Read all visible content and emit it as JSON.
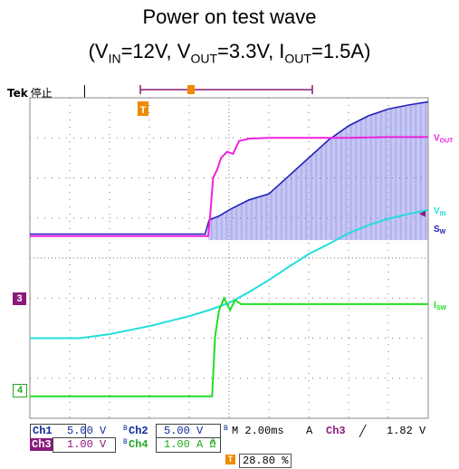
{
  "title": {
    "line1": "Power on test wave",
    "line2_prefix": "(V",
    "line2_vin_sub": "IN",
    "line2_vin_val": "=12V, V",
    "line2_vout_sub": "OUT",
    "line2_vout_val": "=3.3V, I",
    "line2_iout_sub": "OUT",
    "line2_iout_val": "=1.5A)"
  },
  "scope": {
    "brand": "Tek",
    "state": "停止",
    "trigger_marker": "T",
    "channel_markers": {
      "ch3": "3",
      "ch4": "4"
    }
  },
  "status_bar": {
    "ch1_label": "Ch1",
    "ch1_scale": "5.00 V",
    "ch2_label": "Ch2",
    "ch2_scale": "5.00 V",
    "timebase": "M 2.00ms",
    "acq_mode": "A",
    "trig_source": "Ch3",
    "trig_slope": "╱",
    "trig_level": "1.82 V",
    "ch3_label": "Ch3",
    "ch3_scale": "1.00 V",
    "ch4_label": "Ch4",
    "ch4_scale": "1.00 A Ω",
    "bw_mark": "B",
    "trigger_position": "28.80 %"
  },
  "colors": {
    "vout": "#ee22dd",
    "vin": "#22dddd",
    "sw": "#2222bb",
    "isw": "#22dd22",
    "trigger": "#ee8a00",
    "ch3": "#8a1a7a"
  },
  "chart_data": {
    "type": "line",
    "title": "Power on test wave",
    "subtitle": "(VIN=12V, VOUT=3.3V, IOUT=1.5A)",
    "xlabel": "",
    "ylabel": "",
    "x_divisions": 10,
    "y_divisions": 8,
    "grid": true,
    "x_unit": "ms",
    "x_range": [
      0,
      20
    ],
    "y_unit": "div",
    "y_range": [
      0,
      8
    ],
    "series": [
      {
        "name": "VOUT",
        "x": [
          0,
          8.95,
          9.05,
          9.2,
          9.4,
          9.6,
          9.9,
          10.2,
          10.5,
          11.0,
          12.0,
          14.0,
          16.0,
          18.0,
          20.0
        ],
        "y": [
          4.55,
          4.55,
          5.05,
          6.0,
          6.2,
          6.5,
          6.65,
          6.6,
          6.92,
          6.98,
          7.0,
          7.0,
          7.0,
          7.02,
          7.02
        ]
      },
      {
        "name": "VIN",
        "x": [
          0,
          2.5,
          4.0,
          6.0,
          8.0,
          9.0,
          10.0,
          11.0,
          12.0,
          13.0,
          14.0,
          15.0,
          16.0,
          17.0,
          18.0,
          19.0,
          20.0
        ],
        "y": [
          2.0,
          2.0,
          2.1,
          2.3,
          2.55,
          2.7,
          2.88,
          3.15,
          3.45,
          3.78,
          4.1,
          4.35,
          4.62,
          4.82,
          4.98,
          5.1,
          5.2
        ]
      },
      {
        "name": "SW",
        "x": [
          0,
          8.8,
          9.0,
          9.5,
          10.0,
          11.0,
          12.0,
          13.0,
          14.0,
          15.0,
          16.0,
          17.0,
          18.0,
          19.0,
          20.0
        ],
        "y": [
          4.6,
          4.6,
          4.95,
          5.05,
          5.2,
          5.45,
          5.6,
          6.05,
          6.5,
          6.95,
          7.3,
          7.55,
          7.72,
          7.82,
          7.9
        ]
      },
      {
        "name": "ISW",
        "x": [
          0,
          9.15,
          9.3,
          9.5,
          9.75,
          10.05,
          10.3,
          10.6,
          11.0,
          12.0,
          14.0,
          16.0,
          18.0,
          20.0
        ],
        "y": [
          0.55,
          0.55,
          2.05,
          2.7,
          3.0,
          2.7,
          2.95,
          2.85,
          2.85,
          2.85,
          2.85,
          2.85,
          2.85,
          2.85
        ]
      }
    ],
    "trace_labels": [
      "VOUT",
      "VIN",
      "SW",
      "ISW"
    ]
  }
}
